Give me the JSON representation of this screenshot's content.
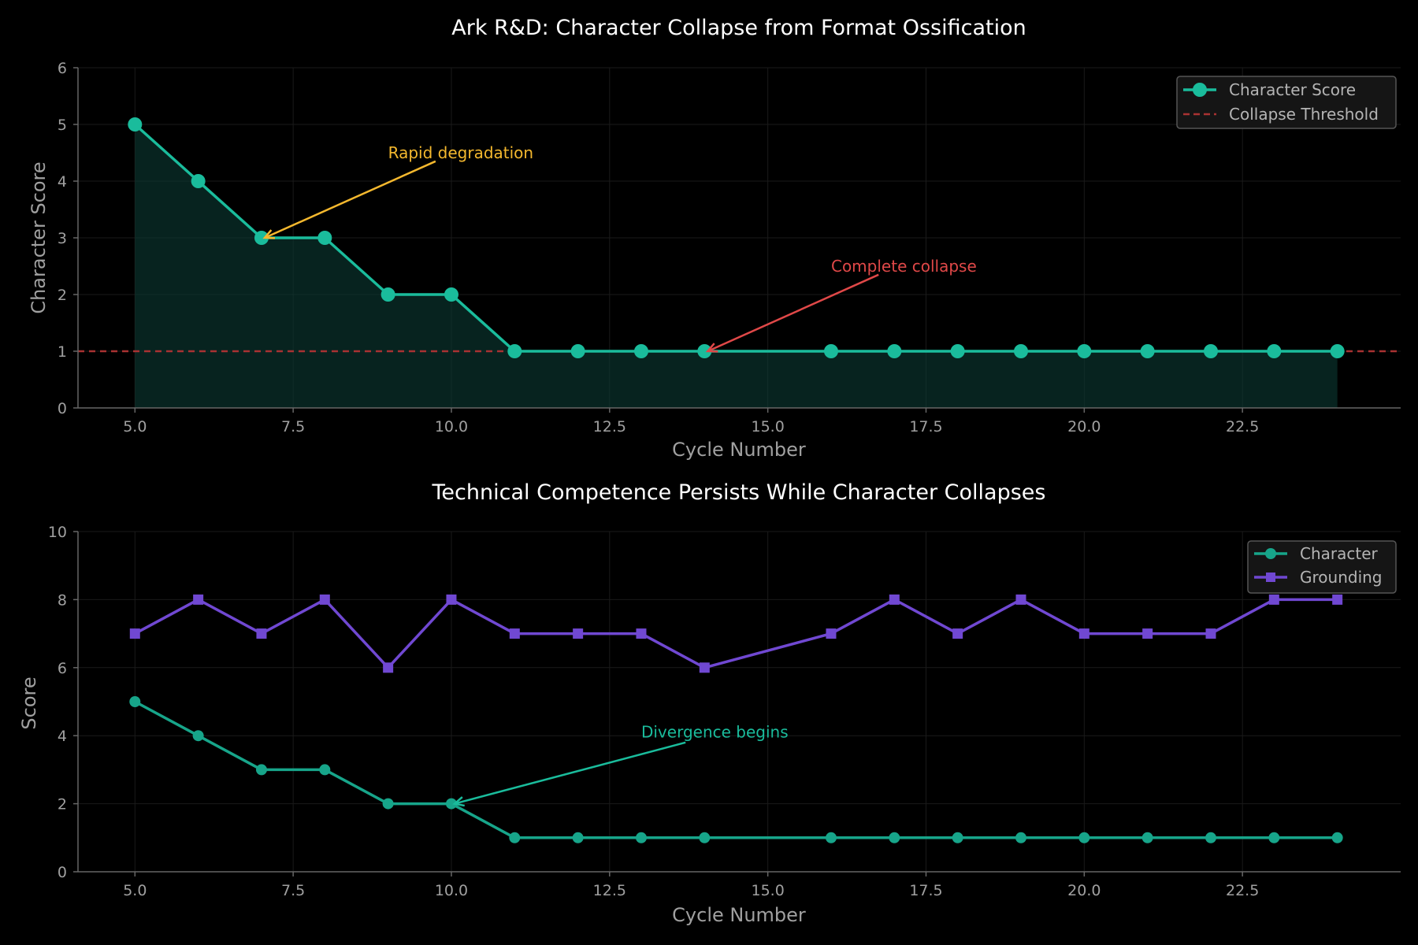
{
  "chart_data": [
    {
      "type": "line",
      "title": "Ark R&D: Character Collapse from Format Ossification",
      "xlabel": "Cycle Number",
      "ylabel": "Character Score",
      "xlim": [
        4.1,
        25.0
      ],
      "ylim": [
        0,
        6
      ],
      "xticks": [
        5.0,
        7.5,
        10.0,
        12.5,
        15.0,
        17.5,
        20.0,
        22.5
      ],
      "xtick_labels": [
        "5.0",
        "7.5",
        "10.0",
        "12.5",
        "15.0",
        "17.5",
        "20.0",
        "22.5"
      ],
      "yticks": [
        0,
        1,
        2,
        3,
        4,
        5,
        6
      ],
      "ytick_labels": [
        "0",
        "1",
        "2",
        "3",
        "4",
        "5",
        "6"
      ],
      "grid": true,
      "legend_position": "top-right",
      "x": [
        5,
        6,
        7,
        8,
        9,
        10,
        11,
        12,
        13,
        14,
        16,
        17,
        18,
        19,
        20,
        21,
        22,
        23,
        24
      ],
      "series": [
        {
          "name": "Character Score",
          "values": [
            5,
            4,
            3,
            3,
            2,
            2,
            1,
            1,
            1,
            1,
            1,
            1,
            1,
            1,
            1,
            1,
            1,
            1,
            1
          ],
          "color": "#1abc9c",
          "fill": true,
          "marker": "circle"
        }
      ],
      "reference_lines": [
        {
          "name": "Collapse Threshold",
          "y": 1,
          "color": "#a83232",
          "style": "dashed"
        }
      ],
      "annotations": [
        {
          "text": "Rapid degradation",
          "color": "#f4b82e",
          "text_x": 9.0,
          "text_y": 4.4,
          "arrow_from_x": 9.75,
          "arrow_from_y": 4.35,
          "arrow_to_x": 7.05,
          "arrow_to_y": 3.0
        },
        {
          "text": "Complete collapse",
          "color": "#e04848",
          "text_x": 16.0,
          "text_y": 2.4,
          "arrow_from_x": 16.75,
          "arrow_from_y": 2.35,
          "arrow_to_x": 14.05,
          "arrow_to_y": 1.0
        }
      ]
    },
    {
      "type": "line",
      "title": "Technical Competence Persists While Character Collapses",
      "xlabel": "Cycle Number",
      "ylabel": "Score",
      "xlim": [
        4.1,
        25.0
      ],
      "ylim": [
        0,
        10
      ],
      "xticks": [
        5.0,
        7.5,
        10.0,
        12.5,
        15.0,
        17.5,
        20.0,
        22.5
      ],
      "xtick_labels": [
        "5.0",
        "7.5",
        "10.0",
        "12.5",
        "15.0",
        "17.5",
        "20.0",
        "22.5"
      ],
      "yticks": [
        0,
        2,
        4,
        6,
        8,
        10
      ],
      "ytick_labels": [
        "0",
        "2",
        "4",
        "6",
        "8",
        "10"
      ],
      "grid": true,
      "legend_position": "top-right",
      "x": [
        5,
        6,
        7,
        8,
        9,
        10,
        11,
        12,
        13,
        14,
        16,
        17,
        18,
        19,
        20,
        21,
        22,
        23,
        24
      ],
      "series": [
        {
          "name": "Character",
          "values": [
            5,
            4,
            3,
            3,
            2,
            2,
            1,
            1,
            1,
            1,
            1,
            1,
            1,
            1,
            1,
            1,
            1,
            1,
            1
          ],
          "color": "#17a58a",
          "marker": "circle"
        },
        {
          "name": "Grounding",
          "values": [
            7,
            8,
            7,
            8,
            6,
            8,
            7,
            7,
            7,
            6,
            7,
            8,
            7,
            8,
            7,
            7,
            7,
            8,
            8
          ],
          "color": "#7048d2",
          "marker": "square"
        }
      ],
      "annotations": [
        {
          "text": "Divergence begins",
          "color": "#1abc9c",
          "text_x": 13.0,
          "text_y": 3.95,
          "arrow_from_x": 13.7,
          "arrow_from_y": 3.8,
          "arrow_to_x": 10.05,
          "arrow_to_y": 2.0
        }
      ]
    }
  ]
}
